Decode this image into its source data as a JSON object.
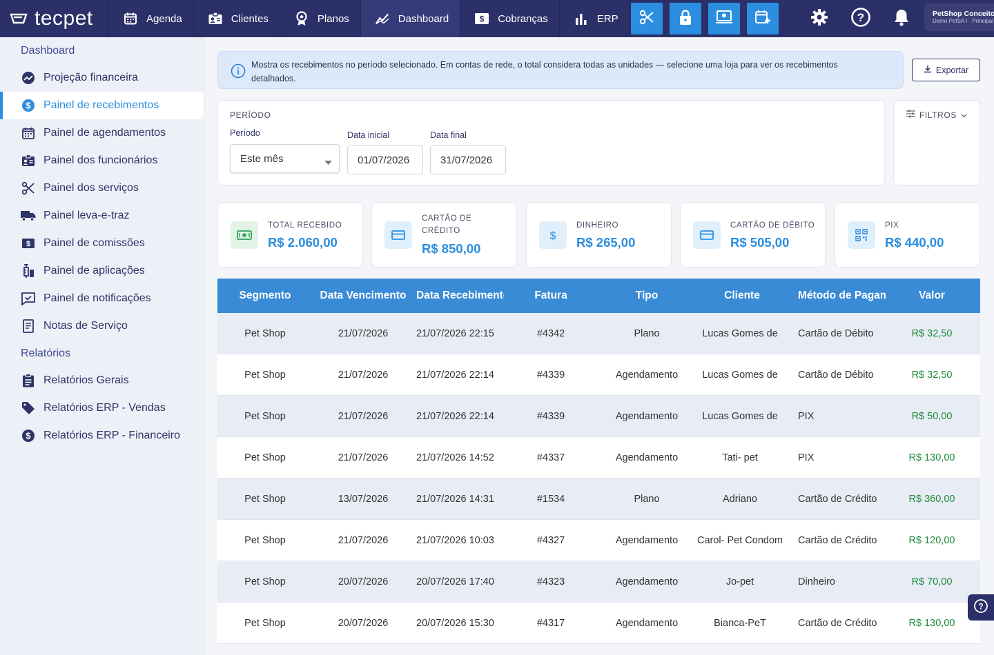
{
  "brand": "tecpet",
  "nav": [
    {
      "label": "Agenda",
      "icon": "calendar-icon"
    },
    {
      "label": "Clientes",
      "icon": "contact-card-icon"
    },
    {
      "label": "Planos",
      "icon": "badge-icon"
    },
    {
      "label": "Dashboard",
      "icon": "chart-line-icon"
    },
    {
      "label": "Cobranças",
      "icon": "dollar-square-icon"
    },
    {
      "label": "ERP",
      "icon": "bar-chart-icon"
    }
  ],
  "quick_actions": [
    "scissors-icon",
    "lock-icon",
    "pos-terminal-icon",
    "calendar-plus-icon"
  ],
  "top_icons": [
    "settings-gear-icon",
    "help-circle-icon",
    "notification-bell-icon"
  ],
  "account": {
    "name": "PetShop Conceito",
    "subtitle": "Demo PetSA I · Principal"
  },
  "sidebar": {
    "sections": [
      {
        "title": "Dashboard",
        "items": [
          {
            "label": "Projeção financeira",
            "icon": "trend-chart-icon"
          },
          {
            "label": "Painel de recebimentos",
            "icon": "dollar-circle-icon",
            "active": true
          },
          {
            "label": "Painel de agendamentos",
            "icon": "calendar-icon"
          },
          {
            "label": "Painel dos funcionários",
            "icon": "id-badge-icon"
          },
          {
            "label": "Painel dos serviços",
            "icon": "scissors-icon"
          },
          {
            "label": "Painel leva-e-traz",
            "icon": "truck-icon"
          },
          {
            "label": "Painel de comissões",
            "icon": "dollar-square-icon"
          },
          {
            "label": "Painel de aplicações",
            "icon": "syringe-icon"
          },
          {
            "label": "Painel de notificações",
            "icon": "chat-check-icon"
          },
          {
            "label": "Notas de Serviço",
            "icon": "invoice-icon"
          }
        ]
      },
      {
        "title": "Relatórios",
        "items": [
          {
            "label": "Relatórios Gerais",
            "icon": "clipboard-icon"
          },
          {
            "label": "Relatórios ERP - Vendas",
            "icon": "tag-icon"
          },
          {
            "label": "Relatórios ERP - Financeiro",
            "icon": "dollar-circle-icon"
          }
        ]
      }
    ]
  },
  "info": {
    "text": "Mostra os recebimentos no período selecionado. Em contas de rede, o total considera todas as unidades — selecione uma loja para ver os recebimentos detalhados."
  },
  "export_label": "Exportar",
  "period": {
    "heading": "PERÍODO",
    "period_label": "Período",
    "period_value": "Este mês",
    "start_label": "Data inicial",
    "start_value": "01/07/2026",
    "end_label": "Data final",
    "end_value": "31/07/2026"
  },
  "filters_label": "FILTROS",
  "summary": [
    {
      "title": "TOTAL RECEBIDO",
      "value": "R$ 2.060,00",
      "icon": "cash-icon"
    },
    {
      "title": "CARTÃO DE CRÉDITO",
      "value": "R$ 850,00",
      "icon": "credit-card-icon"
    },
    {
      "title": "DINHEIRO",
      "value": "R$ 265,00",
      "icon": "dollar-icon"
    },
    {
      "title": "CARTÃO DE DÉBITO",
      "value": "R$ 505,00",
      "icon": "debit-card-icon"
    },
    {
      "title": "PIX",
      "value": "R$ 440,00",
      "icon": "qr-code-icon"
    }
  ],
  "table": {
    "columns": [
      "Segmento",
      "Data Vencimento",
      "Data Recebimento",
      "Fatura",
      "Tipo",
      "Cliente",
      "Método de Pagamento",
      "Valor"
    ],
    "rows": [
      [
        "Pet Shop",
        "21/07/2026",
        "21/07/2026 22:15",
        "#4342",
        "Plano",
        "Lucas Gomes de",
        "Cartão de Débito",
        "R$ 32,50"
      ],
      [
        "Pet Shop",
        "21/07/2026",
        "21/07/2026 22:14",
        "#4339",
        "Agendamento",
        "Lucas Gomes de",
        "Cartão de Débito",
        "R$ 32,50"
      ],
      [
        "Pet Shop",
        "21/07/2026",
        "21/07/2026 22:14",
        "#4339",
        "Agendamento",
        "Lucas Gomes de",
        "PIX",
        "R$ 50,00"
      ],
      [
        "Pet Shop",
        "21/07/2026",
        "21/07/2026 14:52",
        "#4337",
        "Agendamento",
        "Tati- pet",
        "PIX",
        "R$ 130,00"
      ],
      [
        "Pet Shop",
        "13/07/2026",
        "21/07/2026 14:31",
        "#1534",
        "Plano",
        "Adriano",
        "Cartão de Crédito",
        "R$ 360,00"
      ],
      [
        "Pet Shop",
        "21/07/2026",
        "21/07/2026 10:03",
        "#4327",
        "Agendamento",
        "Carol- Pet Condomínio",
        "Cartão de Crédito",
        "R$ 120,00"
      ],
      [
        "Pet Shop",
        "20/07/2026",
        "20/07/2026 17:40",
        "#4323",
        "Agendamento",
        "Jo-pet",
        "Dinheiro",
        "R$ 70,00"
      ],
      [
        "Pet Shop",
        "20/07/2026",
        "20/07/2026 15:30",
        "#4317",
        "Agendamento",
        "Bianca-PeT",
        "Cartão de Crédito",
        "R$ 130,00"
      ]
    ]
  }
}
